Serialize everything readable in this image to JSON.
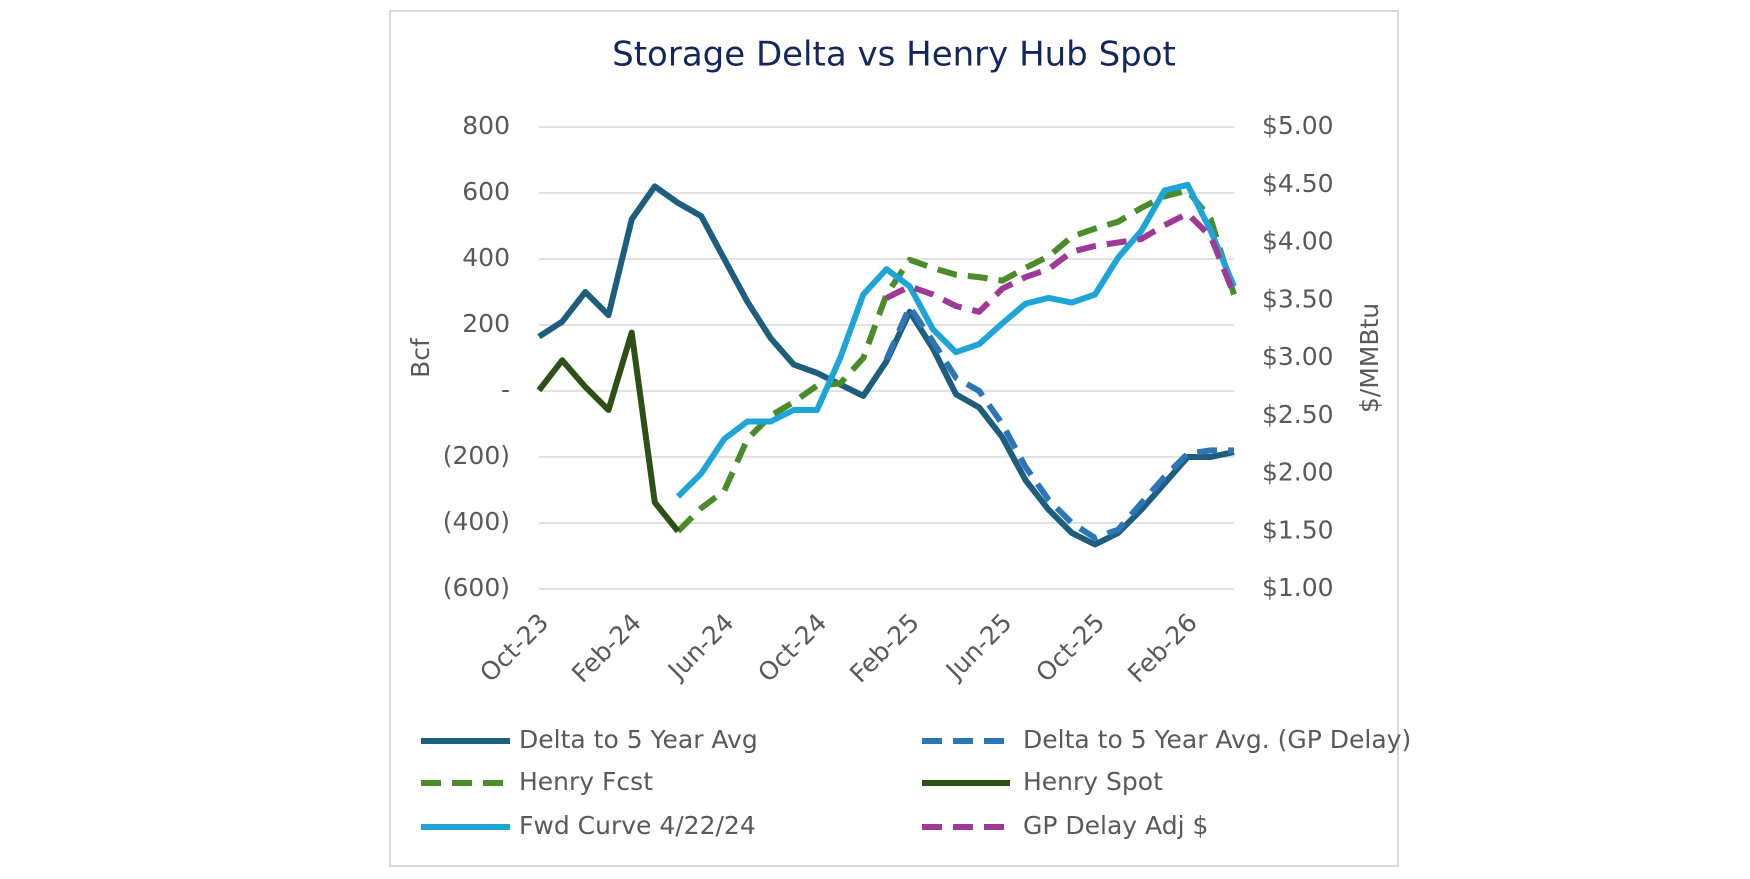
{
  "chart_data": {
    "type": "line",
    "title": "Storage Delta vs Henry Hub Spot",
    "y_label": "Bcf",
    "y2_label": "$/MMBtu",
    "categories": [
      "Oct-23",
      null,
      null,
      null,
      "Feb-24",
      null,
      null,
      null,
      "Jun-24",
      null,
      null,
      null,
      "Oct-24",
      null,
      null,
      null,
      "Feb-25",
      null,
      null,
      null,
      "Jun-25",
      null,
      null,
      null,
      "Oct-25",
      null,
      null,
      null,
      "Feb-26",
      null,
      null
    ],
    "ylim": [
      -600,
      800
    ],
    "yticks": [
      {
        "value": -600,
        "label": "(600)"
      },
      {
        "value": -400,
        "label": "(400)"
      },
      {
        "value": -200,
        "label": "(200)"
      },
      {
        "value": 0,
        "label": "-"
      },
      200,
      400,
      600,
      800
    ],
    "y2lim": [
      1,
      5
    ],
    "y2ticks": [
      {
        "value": 1,
        "label": "$1.00"
      },
      {
        "value": 1.5,
        "label": "$1.50"
      },
      {
        "value": 2,
        "label": "$2.00"
      },
      {
        "value": 2.5,
        "label": "$2.50"
      },
      {
        "value": 3,
        "label": "$3.00"
      },
      {
        "value": 3.5,
        "label": "$3.50"
      },
      {
        "value": 4,
        "label": "$4.00"
      },
      {
        "value": 4.5,
        "label": "$4.50"
      },
      {
        "value": 5,
        "label": "$5.00"
      }
    ],
    "grid": true,
    "legend": "bottom",
    "series": [
      {
        "name": "Delta to 5 Year Avg",
        "color": "#1d5d7e",
        "dashed": false,
        "axis": "y",
        "values": [
          165,
          210,
          300,
          230,
          520,
          620,
          570,
          530,
          400,
          270,
          160,
          80,
          55,
          20,
          -15,
          90,
          240,
          130,
          -10,
          -50,
          -140,
          -270,
          -360,
          -430,
          -465,
          -430,
          -360,
          -280,
          -200,
          -200,
          -185
        ]
      },
      {
        "name": "Delta to 5 Year Avg. (GP Delay)",
        "color": "#2e75b6",
        "dashed": true,
        "axis": "y",
        "values": [
          null,
          null,
          null,
          null,
          null,
          null,
          null,
          null,
          null,
          null,
          null,
          null,
          null,
          null,
          null,
          95,
          255,
          150,
          40,
          0,
          -100,
          -230,
          -330,
          -400,
          -445,
          -420,
          -340,
          -260,
          -190,
          -180,
          -180
        ]
      },
      {
        "name": "Henry Fcst",
        "color": "#4a8c2a",
        "dashed": true,
        "axis": "y2",
        "values": [
          null,
          null,
          null,
          null,
          null,
          null,
          1.5,
          1.7,
          1.85,
          2.3,
          2.5,
          2.62,
          2.76,
          2.78,
          3.0,
          3.55,
          3.85,
          3.78,
          3.72,
          3.7,
          3.67,
          3.78,
          3.88,
          4.05,
          4.12,
          4.18,
          4.3,
          4.4,
          4.45,
          4.2,
          3.55
        ]
      },
      {
        "name": "Henry Spot",
        "color": "#2d5016",
        "dashed": false,
        "axis": "y2",
        "values": [
          2.72,
          2.98,
          2.75,
          2.55,
          3.22,
          1.75,
          1.5,
          null,
          null,
          null,
          null,
          null,
          null,
          null,
          null,
          null,
          null,
          null,
          null,
          null,
          null,
          null,
          null,
          null,
          null,
          null,
          null,
          null,
          null,
          null,
          null
        ]
      },
      {
        "name": "Fwd Curve 4/22/24",
        "color": "#1ea5d8",
        "dashed": false,
        "axis": "y2",
        "values": [
          null,
          null,
          null,
          null,
          null,
          null,
          1.8,
          2.0,
          2.3,
          2.45,
          2.45,
          2.55,
          2.55,
          3.0,
          3.55,
          3.77,
          3.62,
          3.25,
          3.05,
          3.12,
          3.3,
          3.47,
          3.52,
          3.48,
          3.55,
          3.87,
          4.1,
          4.45,
          4.5,
          4.1,
          3.62
        ]
      },
      {
        "name": "GP Delay Adj $",
        "color": "#9e3a96",
        "dashed": true,
        "axis": "y2",
        "values": [
          null,
          null,
          null,
          null,
          null,
          null,
          null,
          null,
          null,
          null,
          null,
          null,
          null,
          null,
          null,
          3.52,
          3.62,
          3.55,
          3.45,
          3.4,
          3.6,
          3.7,
          3.77,
          3.92,
          3.97,
          4.0,
          4.03,
          4.15,
          4.25,
          4.05,
          3.55
        ]
      }
    ]
  }
}
